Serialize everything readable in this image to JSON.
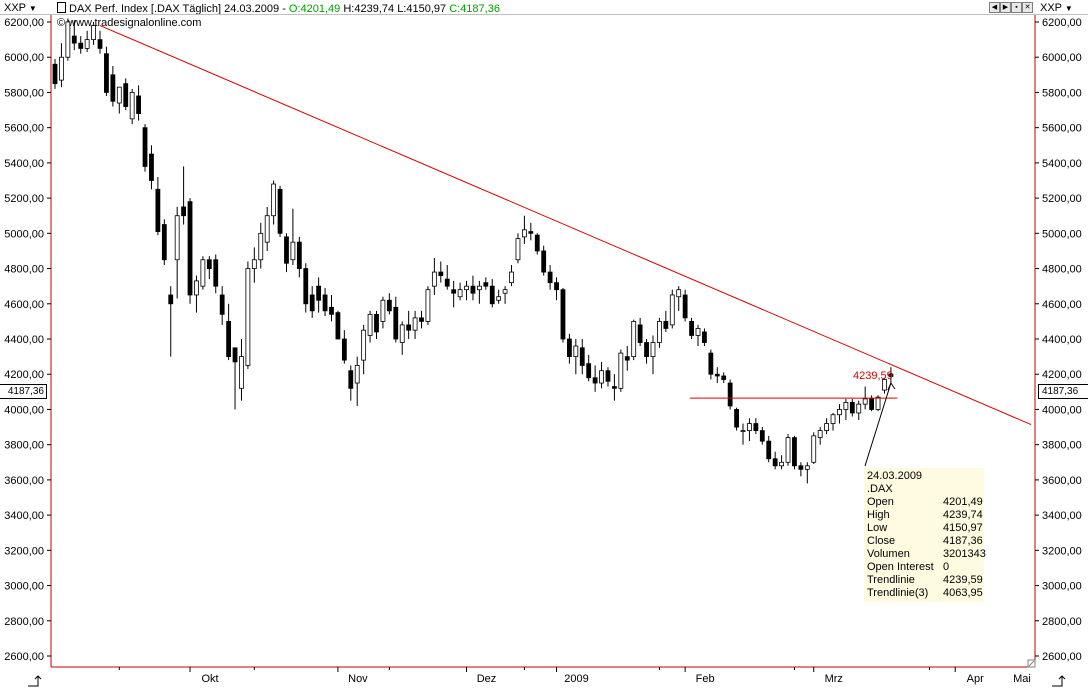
{
  "header": {
    "symbol_left": "XXP",
    "symbol_right": "XXP",
    "title": "DAX Perf. Index [.DAX  Täglich] 24.03.2009 - ",
    "open": "O:4201,49",
    "high": "H:4239,74",
    "low": "L:4150,97",
    "close": "C:4187,36",
    "copyright": "© www.tradesignalonline.com"
  },
  "last_price_label": "4187,36",
  "trendline_label": "4239,59",
  "tooltip": {
    "date": "24.03.2009",
    "symbol": ".DAX",
    "rows": [
      {
        "k": "Open",
        "v": "4201,49"
      },
      {
        "k": "High",
        "v": "4239,74"
      },
      {
        "k": "Low",
        "v": "4150,97"
      },
      {
        "k": "Close",
        "v": "4187,36"
      },
      {
        "k": "Volumen",
        "v": "3201343"
      },
      {
        "k": "Open Interest",
        "v": "0"
      },
      {
        "k": "Trendlinie",
        "v": "4239,59"
      },
      {
        "k": "Trendlinie(3)",
        "v": "4063,95"
      }
    ]
  },
  "colors": {
    "trendline": "#dd0000",
    "frame": "#c00000",
    "up": "#ffffff",
    "down": "#000000"
  },
  "chart_data": {
    "type": "candlestick",
    "ylim": [
      2500,
      6300
    ],
    "y_ticks": [
      "2600,00",
      "2800,00",
      "3000,00",
      "3200,00",
      "3400,00",
      "3600,00",
      "3800,00",
      "4000,00",
      "4200,00",
      "4400,00",
      "4600,00",
      "4800,00",
      "5000,00",
      "5200,00",
      "5400,00",
      "5600,00",
      "5800,00",
      "6000,00",
      "6200,00"
    ],
    "x_labels": [
      {
        "label": "Okt",
        "month": "2008-10"
      },
      {
        "label": "Nov",
        "month": "2008-11"
      },
      {
        "label": "Dez",
        "month": "2008-12"
      },
      {
        "label": "2009",
        "month": "2009-01"
      },
      {
        "label": "Feb",
        "month": "2009-02"
      },
      {
        "label": "Mrz",
        "month": "2009-03"
      },
      {
        "label": "Apr",
        "month": "2009-04"
      },
      {
        "label": "Mai",
        "month": "2009-05"
      }
    ],
    "candles": [
      {
        "o": 5960,
        "h": 5990,
        "l": 5820,
        "c": 5850
      },
      {
        "o": 5870,
        "h": 6080,
        "l": 5830,
        "c": 6000
      },
      {
        "o": 6000,
        "h": 6220,
        "l": 5980,
        "c": 6200
      },
      {
        "o": 6120,
        "h": 6210,
        "l": 6040,
        "c": 6080
      },
      {
        "o": 6080,
        "h": 6120,
        "l": 6020,
        "c": 6050
      },
      {
        "o": 6050,
        "h": 6150,
        "l": 6030,
        "c": 6100
      },
      {
        "o": 6100,
        "h": 6200,
        "l": 6070,
        "c": 6180
      },
      {
        "o": 6100,
        "h": 6150,
        "l": 6020,
        "c": 6050
      },
      {
        "o": 6020,
        "h": 6060,
        "l": 5780,
        "c": 5800
      },
      {
        "o": 5900,
        "h": 5950,
        "l": 5720,
        "c": 5750
      },
      {
        "o": 5740,
        "h": 5830,
        "l": 5680,
        "c": 5830
      },
      {
        "o": 5850,
        "h": 5880,
        "l": 5700,
        "c": 5720
      },
      {
        "o": 5650,
        "h": 5820,
        "l": 5620,
        "c": 5800
      },
      {
        "o": 5780,
        "h": 5840,
        "l": 5640,
        "c": 5680
      },
      {
        "o": 5600,
        "h": 5620,
        "l": 5350,
        "c": 5380
      },
      {
        "o": 5450,
        "h": 5500,
        "l": 5250,
        "c": 5300
      },
      {
        "o": 5250,
        "h": 5320,
        "l": 4990,
        "c": 5010
      },
      {
        "o": 5050,
        "h": 5080,
        "l": 4820,
        "c": 4850
      },
      {
        "o": 4650,
        "h": 4700,
        "l": 4300,
        "c": 4600
      },
      {
        "o": 4850,
        "h": 5150,
        "l": 4630,
        "c": 5100
      },
      {
        "o": 5150,
        "h": 5380,
        "l": 5050,
        "c": 5100
      },
      {
        "o": 5180,
        "h": 5200,
        "l": 4600,
        "c": 4650
      },
      {
        "o": 4650,
        "h": 4760,
        "l": 4550,
        "c": 4730
      },
      {
        "o": 4700,
        "h": 4870,
        "l": 4680,
        "c": 4850
      },
      {
        "o": 4850,
        "h": 4870,
        "l": 4740,
        "c": 4800
      },
      {
        "o": 4850,
        "h": 4880,
        "l": 4660,
        "c": 4700
      },
      {
        "o": 4650,
        "h": 4700,
        "l": 4480,
        "c": 4540
      },
      {
        "o": 4500,
        "h": 4600,
        "l": 4280,
        "c": 4300
      },
      {
        "o": 4350,
        "h": 4350,
        "l": 4000,
        "c": 4270
      },
      {
        "o": 4120,
        "h": 4400,
        "l": 4050,
        "c": 4300
      },
      {
        "o": 4250,
        "h": 4840,
        "l": 4230,
        "c": 4800
      },
      {
        "o": 4800,
        "h": 4920,
        "l": 4720,
        "c": 4850
      },
      {
        "o": 4850,
        "h": 5060,
        "l": 4800,
        "c": 5000
      },
      {
        "o": 4950,
        "h": 5150,
        "l": 4900,
        "c": 5100
      },
      {
        "o": 5100,
        "h": 5300,
        "l": 5050,
        "c": 5280
      },
      {
        "o": 5250,
        "h": 5270,
        "l": 4980,
        "c": 5000
      },
      {
        "o": 4980,
        "h": 5000,
        "l": 4780,
        "c": 4830
      },
      {
        "o": 4850,
        "h": 5140,
        "l": 4820,
        "c": 4950
      },
      {
        "o": 4950,
        "h": 4980,
        "l": 4750,
        "c": 4800
      },
      {
        "o": 4800,
        "h": 4830,
        "l": 4550,
        "c": 4600
      },
      {
        "o": 4650,
        "h": 4700,
        "l": 4520,
        "c": 4560
      },
      {
        "o": 4700,
        "h": 4750,
        "l": 4550,
        "c": 4620
      },
      {
        "o": 4650,
        "h": 4690,
        "l": 4530,
        "c": 4560
      },
      {
        "o": 4580,
        "h": 4650,
        "l": 4500,
        "c": 4540
      },
      {
        "o": 4550,
        "h": 4560,
        "l": 4400,
        "c": 4400
      },
      {
        "o": 4400,
        "h": 4450,
        "l": 4260,
        "c": 4280
      },
      {
        "o": 4220,
        "h": 4250,
        "l": 4050,
        "c": 4120
      },
      {
        "o": 4150,
        "h": 4300,
        "l": 4020,
        "c": 4250
      },
      {
        "o": 4280,
        "h": 4480,
        "l": 4200,
        "c": 4450
      },
      {
        "o": 4420,
        "h": 4560,
        "l": 4380,
        "c": 4540
      },
      {
        "o": 4540,
        "h": 4560,
        "l": 4400,
        "c": 4440
      },
      {
        "o": 4500,
        "h": 4640,
        "l": 4460,
        "c": 4620
      },
      {
        "o": 4620,
        "h": 4660,
        "l": 4540,
        "c": 4560
      },
      {
        "o": 4580,
        "h": 4640,
        "l": 4380,
        "c": 4400
      },
      {
        "o": 4380,
        "h": 4500,
        "l": 4310,
        "c": 4480
      },
      {
        "o": 4480,
        "h": 4560,
        "l": 4400,
        "c": 4450
      },
      {
        "o": 4450,
        "h": 4560,
        "l": 4400,
        "c": 4520
      },
      {
        "o": 4520,
        "h": 4560,
        "l": 4460,
        "c": 4500
      },
      {
        "o": 4500,
        "h": 4700,
        "l": 4480,
        "c": 4680
      },
      {
        "o": 4700,
        "h": 4860,
        "l": 4650,
        "c": 4780
      },
      {
        "o": 4780,
        "h": 4840,
        "l": 4720,
        "c": 4760
      },
      {
        "o": 4740,
        "h": 4820,
        "l": 4680,
        "c": 4700
      },
      {
        "o": 4680,
        "h": 4730,
        "l": 4580,
        "c": 4660
      },
      {
        "o": 4640,
        "h": 4720,
        "l": 4620,
        "c": 4680
      },
      {
        "o": 4680,
        "h": 4730,
        "l": 4620,
        "c": 4700
      },
      {
        "o": 4700,
        "h": 4760,
        "l": 4620,
        "c": 4660
      },
      {
        "o": 4680,
        "h": 4730,
        "l": 4600,
        "c": 4700
      },
      {
        "o": 4720,
        "h": 4750,
        "l": 4680,
        "c": 4700
      },
      {
        "o": 4700,
        "h": 4740,
        "l": 4580,
        "c": 4600
      },
      {
        "o": 4620,
        "h": 4680,
        "l": 4600,
        "c": 4640
      },
      {
        "o": 4660,
        "h": 4700,
        "l": 4600,
        "c": 4680
      },
      {
        "o": 4720,
        "h": 4820,
        "l": 4700,
        "c": 4780
      },
      {
        "o": 4850,
        "h": 5000,
        "l": 4830,
        "c": 4970
      },
      {
        "o": 4980,
        "h": 5100,
        "l": 4940,
        "c": 5020
      },
      {
        "o": 5010,
        "h": 5060,
        "l": 4960,
        "c": 5000
      },
      {
        "o": 4990,
        "h": 5000,
        "l": 4880,
        "c": 4900
      },
      {
        "o": 4900,
        "h": 4930,
        "l": 4760,
        "c": 4780
      },
      {
        "o": 4780,
        "h": 4820,
        "l": 4680,
        "c": 4720
      },
      {
        "o": 4720,
        "h": 4750,
        "l": 4620,
        "c": 4680
      },
      {
        "o": 4680,
        "h": 4690,
        "l": 4380,
        "c": 4400
      },
      {
        "o": 4400,
        "h": 4430,
        "l": 4260,
        "c": 4300
      },
      {
        "o": 4300,
        "h": 4400,
        "l": 4200,
        "c": 4360
      },
      {
        "o": 4350,
        "h": 4400,
        "l": 4200,
        "c": 4250
      },
      {
        "o": 4260,
        "h": 4310,
        "l": 4160,
        "c": 4180
      },
      {
        "o": 4180,
        "h": 4250,
        "l": 4100,
        "c": 4150
      },
      {
        "o": 4150,
        "h": 4270,
        "l": 4120,
        "c": 4220
      },
      {
        "o": 4220,
        "h": 4240,
        "l": 4130,
        "c": 4160
      },
      {
        "o": 4130,
        "h": 4200,
        "l": 4050,
        "c": 4120
      },
      {
        "o": 4120,
        "h": 4340,
        "l": 4100,
        "c": 4320
      },
      {
        "o": 4300,
        "h": 4360,
        "l": 4220,
        "c": 4280
      },
      {
        "o": 4300,
        "h": 4510,
        "l": 4280,
        "c": 4500
      },
      {
        "o": 4480,
        "h": 4520,
        "l": 4360,
        "c": 4380
      },
      {
        "o": 4380,
        "h": 4400,
        "l": 4260,
        "c": 4300
      },
      {
        "o": 4300,
        "h": 4420,
        "l": 4200,
        "c": 4380
      },
      {
        "o": 4380,
        "h": 4520,
        "l": 4350,
        "c": 4500
      },
      {
        "o": 4500,
        "h": 4560,
        "l": 4440,
        "c": 4460
      },
      {
        "o": 4480,
        "h": 4680,
        "l": 4460,
        "c": 4650
      },
      {
        "o": 4640,
        "h": 4700,
        "l": 4560,
        "c": 4680
      },
      {
        "o": 4650,
        "h": 4680,
        "l": 4500,
        "c": 4520
      },
      {
        "o": 4500,
        "h": 4520,
        "l": 4400,
        "c": 4420
      },
      {
        "o": 4420,
        "h": 4480,
        "l": 4360,
        "c": 4460
      },
      {
        "o": 4440,
        "h": 4460,
        "l": 4360,
        "c": 4380
      },
      {
        "o": 4320,
        "h": 4340,
        "l": 4170,
        "c": 4200
      },
      {
        "o": 4200,
        "h": 4240,
        "l": 4150,
        "c": 4190
      },
      {
        "o": 4190,
        "h": 4210,
        "l": 4150,
        "c": 4170
      },
      {
        "o": 4150,
        "h": 4170,
        "l": 4000,
        "c": 4020
      },
      {
        "o": 4000,
        "h": 4010,
        "l": 3880,
        "c": 3900
      },
      {
        "o": 3880,
        "h": 3920,
        "l": 3800,
        "c": 3880
      },
      {
        "o": 3880,
        "h": 3950,
        "l": 3820,
        "c": 3920
      },
      {
        "o": 3920,
        "h": 3950,
        "l": 3860,
        "c": 3880
      },
      {
        "o": 3880,
        "h": 3900,
        "l": 3800,
        "c": 3820
      },
      {
        "o": 3820,
        "h": 3850,
        "l": 3700,
        "c": 3720
      },
      {
        "o": 3720,
        "h": 3760,
        "l": 3660,
        "c": 3680
      },
      {
        "o": 3680,
        "h": 3740,
        "l": 3660,
        "c": 3700
      },
      {
        "o": 3700,
        "h": 3860,
        "l": 3680,
        "c": 3840
      },
      {
        "o": 3840,
        "h": 3850,
        "l": 3660,
        "c": 3680
      },
      {
        "o": 3680,
        "h": 3700,
        "l": 3620,
        "c": 3660
      },
      {
        "o": 3660,
        "h": 3700,
        "l": 3580,
        "c": 3680
      },
      {
        "o": 3700,
        "h": 3870,
        "l": 3690,
        "c": 3850
      },
      {
        "o": 3840,
        "h": 3900,
        "l": 3800,
        "c": 3880
      },
      {
        "o": 3880,
        "h": 3950,
        "l": 3860,
        "c": 3920
      },
      {
        "o": 3920,
        "h": 3980,
        "l": 3880,
        "c": 3970
      },
      {
        "o": 3970,
        "h": 4030,
        "l": 3920,
        "c": 4000
      },
      {
        "o": 4000,
        "h": 4060,
        "l": 3940,
        "c": 4040
      },
      {
        "o": 4040,
        "h": 4060,
        "l": 3960,
        "c": 3980
      },
      {
        "o": 3980,
        "h": 4050,
        "l": 3940,
        "c": 4030
      },
      {
        "o": 4030,
        "h": 4130,
        "l": 4000,
        "c": 4060
      },
      {
        "o": 4060,
        "h": 4080,
        "l": 3990,
        "c": 4000
      },
      {
        "o": 4000,
        "h": 4080,
        "l": 3990,
        "c": 4070
      },
      {
        "o": 4110,
        "h": 4180,
        "l": 4090,
        "c": 4170
      },
      {
        "o": 4201.49,
        "h": 4239.74,
        "l": 4150.97,
        "c": 4187.36
      }
    ],
    "trendline": {
      "from": {
        "bar": 7,
        "value": 6180
      },
      "to": {
        "bar": 131,
        "value": 4239.59
      }
    },
    "support_line": {
      "from_bar": 100,
      "to_bar": 131,
      "value": 4063.95
    }
  }
}
